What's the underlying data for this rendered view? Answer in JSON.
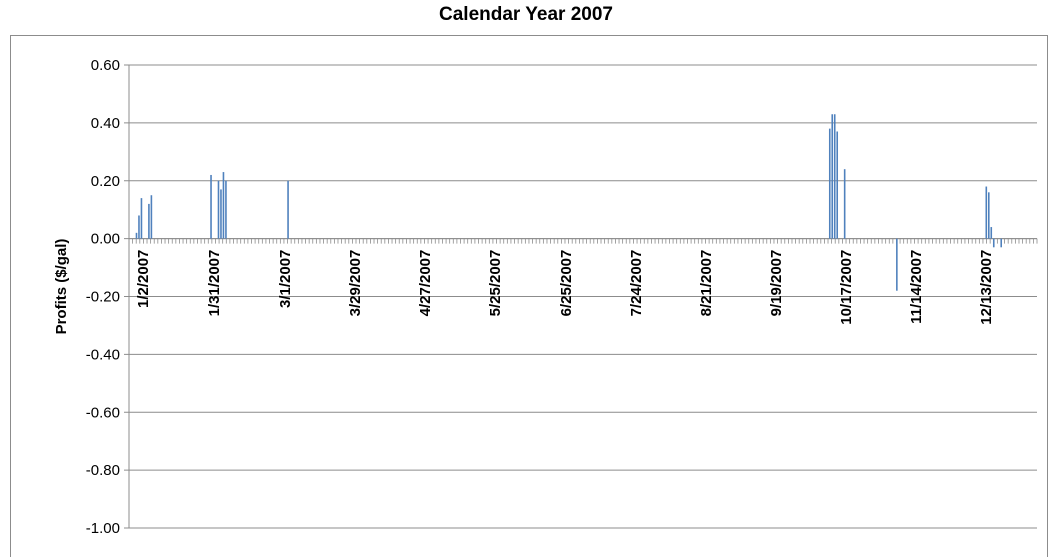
{
  "chart_data": {
    "type": "bar",
    "title": "Calendar Year 2007",
    "xlabel": "",
    "ylabel": "Profits ($/gal)",
    "ylim": [
      -1.0,
      0.6
    ],
    "yticks": [
      "0.60",
      "0.40",
      "0.20",
      "0.00",
      "-0.20",
      "-0.40",
      "-0.60",
      "-0.80",
      "-1.00"
    ],
    "ytick_values": [
      0.6,
      0.4,
      0.2,
      0.0,
      -0.2,
      -0.4,
      -0.6,
      -0.8,
      -1.0
    ],
    "xticks": [
      "1/2/2007",
      "1/31/2007",
      "3/1/2007",
      "3/29/2007",
      "4/27/2007",
      "5/25/2007",
      "6/25/2007",
      "7/24/2007",
      "8/21/2007",
      "9/19/2007",
      "10/17/2007",
      "11/14/2007",
      "12/13/2007"
    ],
    "xlim": [
      "2007-01-02",
      "2007-12-31"
    ],
    "grid": true,
    "legend": "none",
    "color": "#4f81bd",
    "points": [
      {
        "x": "2007-01-03",
        "y": 0.02
      },
      {
        "x": "2007-01-04",
        "y": 0.08
      },
      {
        "x": "2007-01-05",
        "y": 0.14
      },
      {
        "x": "2007-01-08",
        "y": 0.12
      },
      {
        "x": "2007-01-09",
        "y": 0.15
      },
      {
        "x": "2007-02-02",
        "y": 0.22
      },
      {
        "x": "2007-02-05",
        "y": 0.2
      },
      {
        "x": "2007-02-06",
        "y": 0.17
      },
      {
        "x": "2007-02-07",
        "y": 0.23
      },
      {
        "x": "2007-02-08",
        "y": 0.2
      },
      {
        "x": "2007-03-05",
        "y": 0.2
      },
      {
        "x": "2007-10-09",
        "y": 0.38
      },
      {
        "x": "2007-10-10",
        "y": 0.43
      },
      {
        "x": "2007-10-11",
        "y": 0.43
      },
      {
        "x": "2007-10-12",
        "y": 0.37
      },
      {
        "x": "2007-10-15",
        "y": 0.24
      },
      {
        "x": "2007-11-05",
        "y": -0.18
      },
      {
        "x": "2007-12-11",
        "y": 0.18
      },
      {
        "x": "2007-12-12",
        "y": 0.16
      },
      {
        "x": "2007-12-13",
        "y": 0.04
      },
      {
        "x": "2007-12-14",
        "y": -0.03
      },
      {
        "x": "2007-12-17",
        "y": -0.03
      }
    ]
  }
}
